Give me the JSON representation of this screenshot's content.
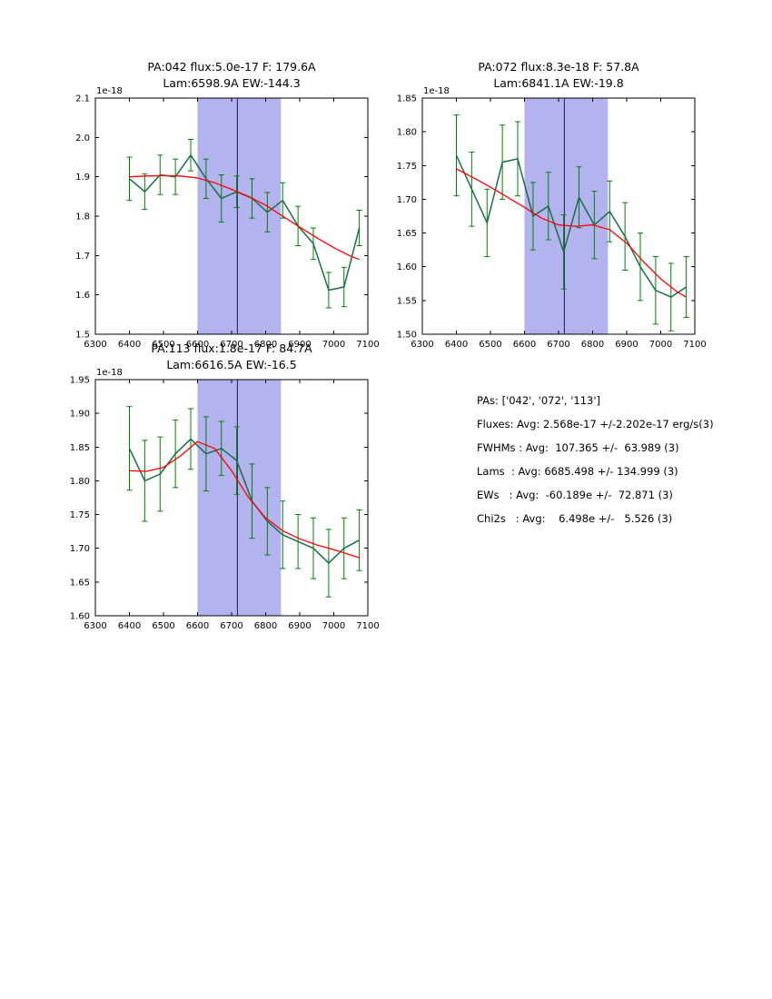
{
  "figure": {
    "background": "#ffffff"
  },
  "colors": {
    "span": "#b3b3ef",
    "vline": "#1c1c5e",
    "errbar": "#008000",
    "line": "#1b6d48",
    "fit": "#ff0000",
    "axis": "#000000"
  },
  "stats": {
    "lines": [
      "PAs: ['042', '072', '113']",
      "Fluxes: Avg: 2.568e-17 +/-2.202e-17 erg/s(3)",
      "FWHMs : Avg:  107.365 +/-  63.989 (3)",
      "Lams  : Avg: 6685.498 +/- 134.999 (3)",
      "EWs   : Avg:  -60.189e +/-  72.871 (3)",
      "Chi2s   : Avg:    6.498e +/-   5.526 (3)"
    ]
  },
  "chart_data": [
    {
      "type": "line",
      "title_line1": "PA:042 flux:5.0e-17 F: 179.6A",
      "title_line2": "Lam:6598.9A EW:-144.3",
      "offset_label": "1e-18",
      "xlim": [
        6300,
        7100
      ],
      "ylim": [
        1.5,
        2.1
      ],
      "xticks": [
        6300,
        6400,
        6500,
        6600,
        6700,
        6800,
        6900,
        7000,
        7100
      ],
      "yticks": [
        1.5,
        1.6,
        1.7,
        1.8,
        1.9,
        2.0,
        2.1
      ],
      "ytick_labels": [
        "1.5",
        "1.6",
        "1.7",
        "1.8",
        "1.9",
        "2.0",
        "2.1"
      ],
      "span": [
        6600,
        6845
      ],
      "vline": 6717,
      "x": [
        6400,
        6445,
        6490,
        6535,
        6580,
        6625,
        6670,
        6715,
        6760,
        6805,
        6850,
        6895,
        6940,
        6985,
        7030,
        7075
      ],
      "y": [
        1.895,
        1.862,
        1.905,
        1.9,
        1.955,
        1.895,
        1.845,
        1.862,
        1.845,
        1.81,
        1.84,
        1.775,
        1.73,
        1.612,
        1.62,
        1.77
      ],
      "yerr": [
        0.055,
        0.045,
        0.05,
        0.045,
        0.04,
        0.05,
        0.06,
        0.04,
        0.05,
        0.05,
        0.045,
        0.05,
        0.04,
        0.045,
        0.05,
        0.045
      ],
      "fit_x": [
        6400,
        6450,
        6500,
        6550,
        6600,
        6650,
        6700,
        6750,
        6800,
        6850,
        6900,
        6950,
        7000,
        7050,
        7075
      ],
      "fit_y": [
        1.9,
        1.902,
        1.903,
        1.902,
        1.897,
        1.885,
        1.868,
        1.85,
        1.828,
        1.8,
        1.772,
        1.745,
        1.72,
        1.698,
        1.69
      ]
    },
    {
      "type": "line",
      "title_line1": "PA:072 flux:8.3e-18 F: 57.8A",
      "title_line2": "Lam:6841.1A EW:-19.8",
      "offset_label": "1e-18",
      "xlim": [
        6300,
        7100
      ],
      "ylim": [
        1.5,
        1.85
      ],
      "xticks": [
        6300,
        6400,
        6500,
        6600,
        6700,
        6800,
        6900,
        7000,
        7100
      ],
      "yticks": [
        1.5,
        1.55,
        1.6,
        1.65,
        1.7,
        1.75,
        1.8,
        1.85
      ],
      "ytick_labels": [
        "1.50",
        "1.55",
        "1.60",
        "1.65",
        "1.70",
        "1.75",
        "1.80",
        "1.85"
      ],
      "span": [
        6600,
        6845
      ],
      "vline": 6717,
      "x": [
        6400,
        6445,
        6490,
        6535,
        6580,
        6625,
        6670,
        6715,
        6760,
        6805,
        6850,
        6895,
        6940,
        6985,
        7030,
        7075
      ],
      "y": [
        1.765,
        1.715,
        1.665,
        1.755,
        1.76,
        1.675,
        1.69,
        1.622,
        1.703,
        1.662,
        1.682,
        1.645,
        1.6,
        1.565,
        1.555,
        1.57
      ],
      "yerr": [
        0.06,
        0.055,
        0.05,
        0.055,
        0.055,
        0.05,
        0.05,
        0.055,
        0.045,
        0.05,
        0.045,
        0.05,
        0.05,
        0.05,
        0.05,
        0.045
      ],
      "fit_x": [
        6400,
        6450,
        6500,
        6550,
        6600,
        6650,
        6700,
        6750,
        6800,
        6850,
        6900,
        6950,
        7000,
        7050,
        7075
      ],
      "fit_y": [
        1.745,
        1.732,
        1.718,
        1.703,
        1.688,
        1.672,
        1.662,
        1.66,
        1.662,
        1.655,
        1.635,
        1.607,
        1.582,
        1.562,
        1.555
      ]
    },
    {
      "type": "line",
      "title_line1": "PA:113 flux:1.8e-17 F: 84.7A",
      "title_line2": "Lam:6616.5A EW:-16.5",
      "offset_label": "1e-18",
      "xlim": [
        6300,
        7100
      ],
      "ylim": [
        1.6,
        1.95
      ],
      "xticks": [
        6300,
        6400,
        6500,
        6600,
        6700,
        6800,
        6900,
        7000,
        7100
      ],
      "yticks": [
        1.6,
        1.65,
        1.7,
        1.75,
        1.8,
        1.85,
        1.9,
        1.95
      ],
      "ytick_labels": [
        "1.60",
        "1.65",
        "1.70",
        "1.75",
        "1.80",
        "1.85",
        "1.90",
        "1.95"
      ],
      "span": [
        6600,
        6845
      ],
      "vline": 6717,
      "x": [
        6400,
        6445,
        6490,
        6535,
        6580,
        6625,
        6670,
        6715,
        6760,
        6805,
        6850,
        6895,
        6940,
        6985,
        7030,
        7075
      ],
      "y": [
        1.848,
        1.8,
        1.81,
        1.84,
        1.862,
        1.84,
        1.848,
        1.83,
        1.77,
        1.74,
        1.72,
        1.71,
        1.7,
        1.678,
        1.7,
        1.712
      ],
      "yerr": [
        0.062,
        0.06,
        0.055,
        0.05,
        0.045,
        0.055,
        0.04,
        0.05,
        0.055,
        0.05,
        0.05,
        0.04,
        0.045,
        0.05,
        0.045,
        0.045
      ],
      "fit_x": [
        6400,
        6450,
        6500,
        6550,
        6600,
        6650,
        6700,
        6750,
        6800,
        6850,
        6900,
        6950,
        7000,
        7050,
        7075
      ],
      "fit_y": [
        1.815,
        1.814,
        1.82,
        1.837,
        1.858,
        1.848,
        1.815,
        1.775,
        1.745,
        1.726,
        1.714,
        1.705,
        1.698,
        1.69,
        1.686
      ]
    }
  ]
}
